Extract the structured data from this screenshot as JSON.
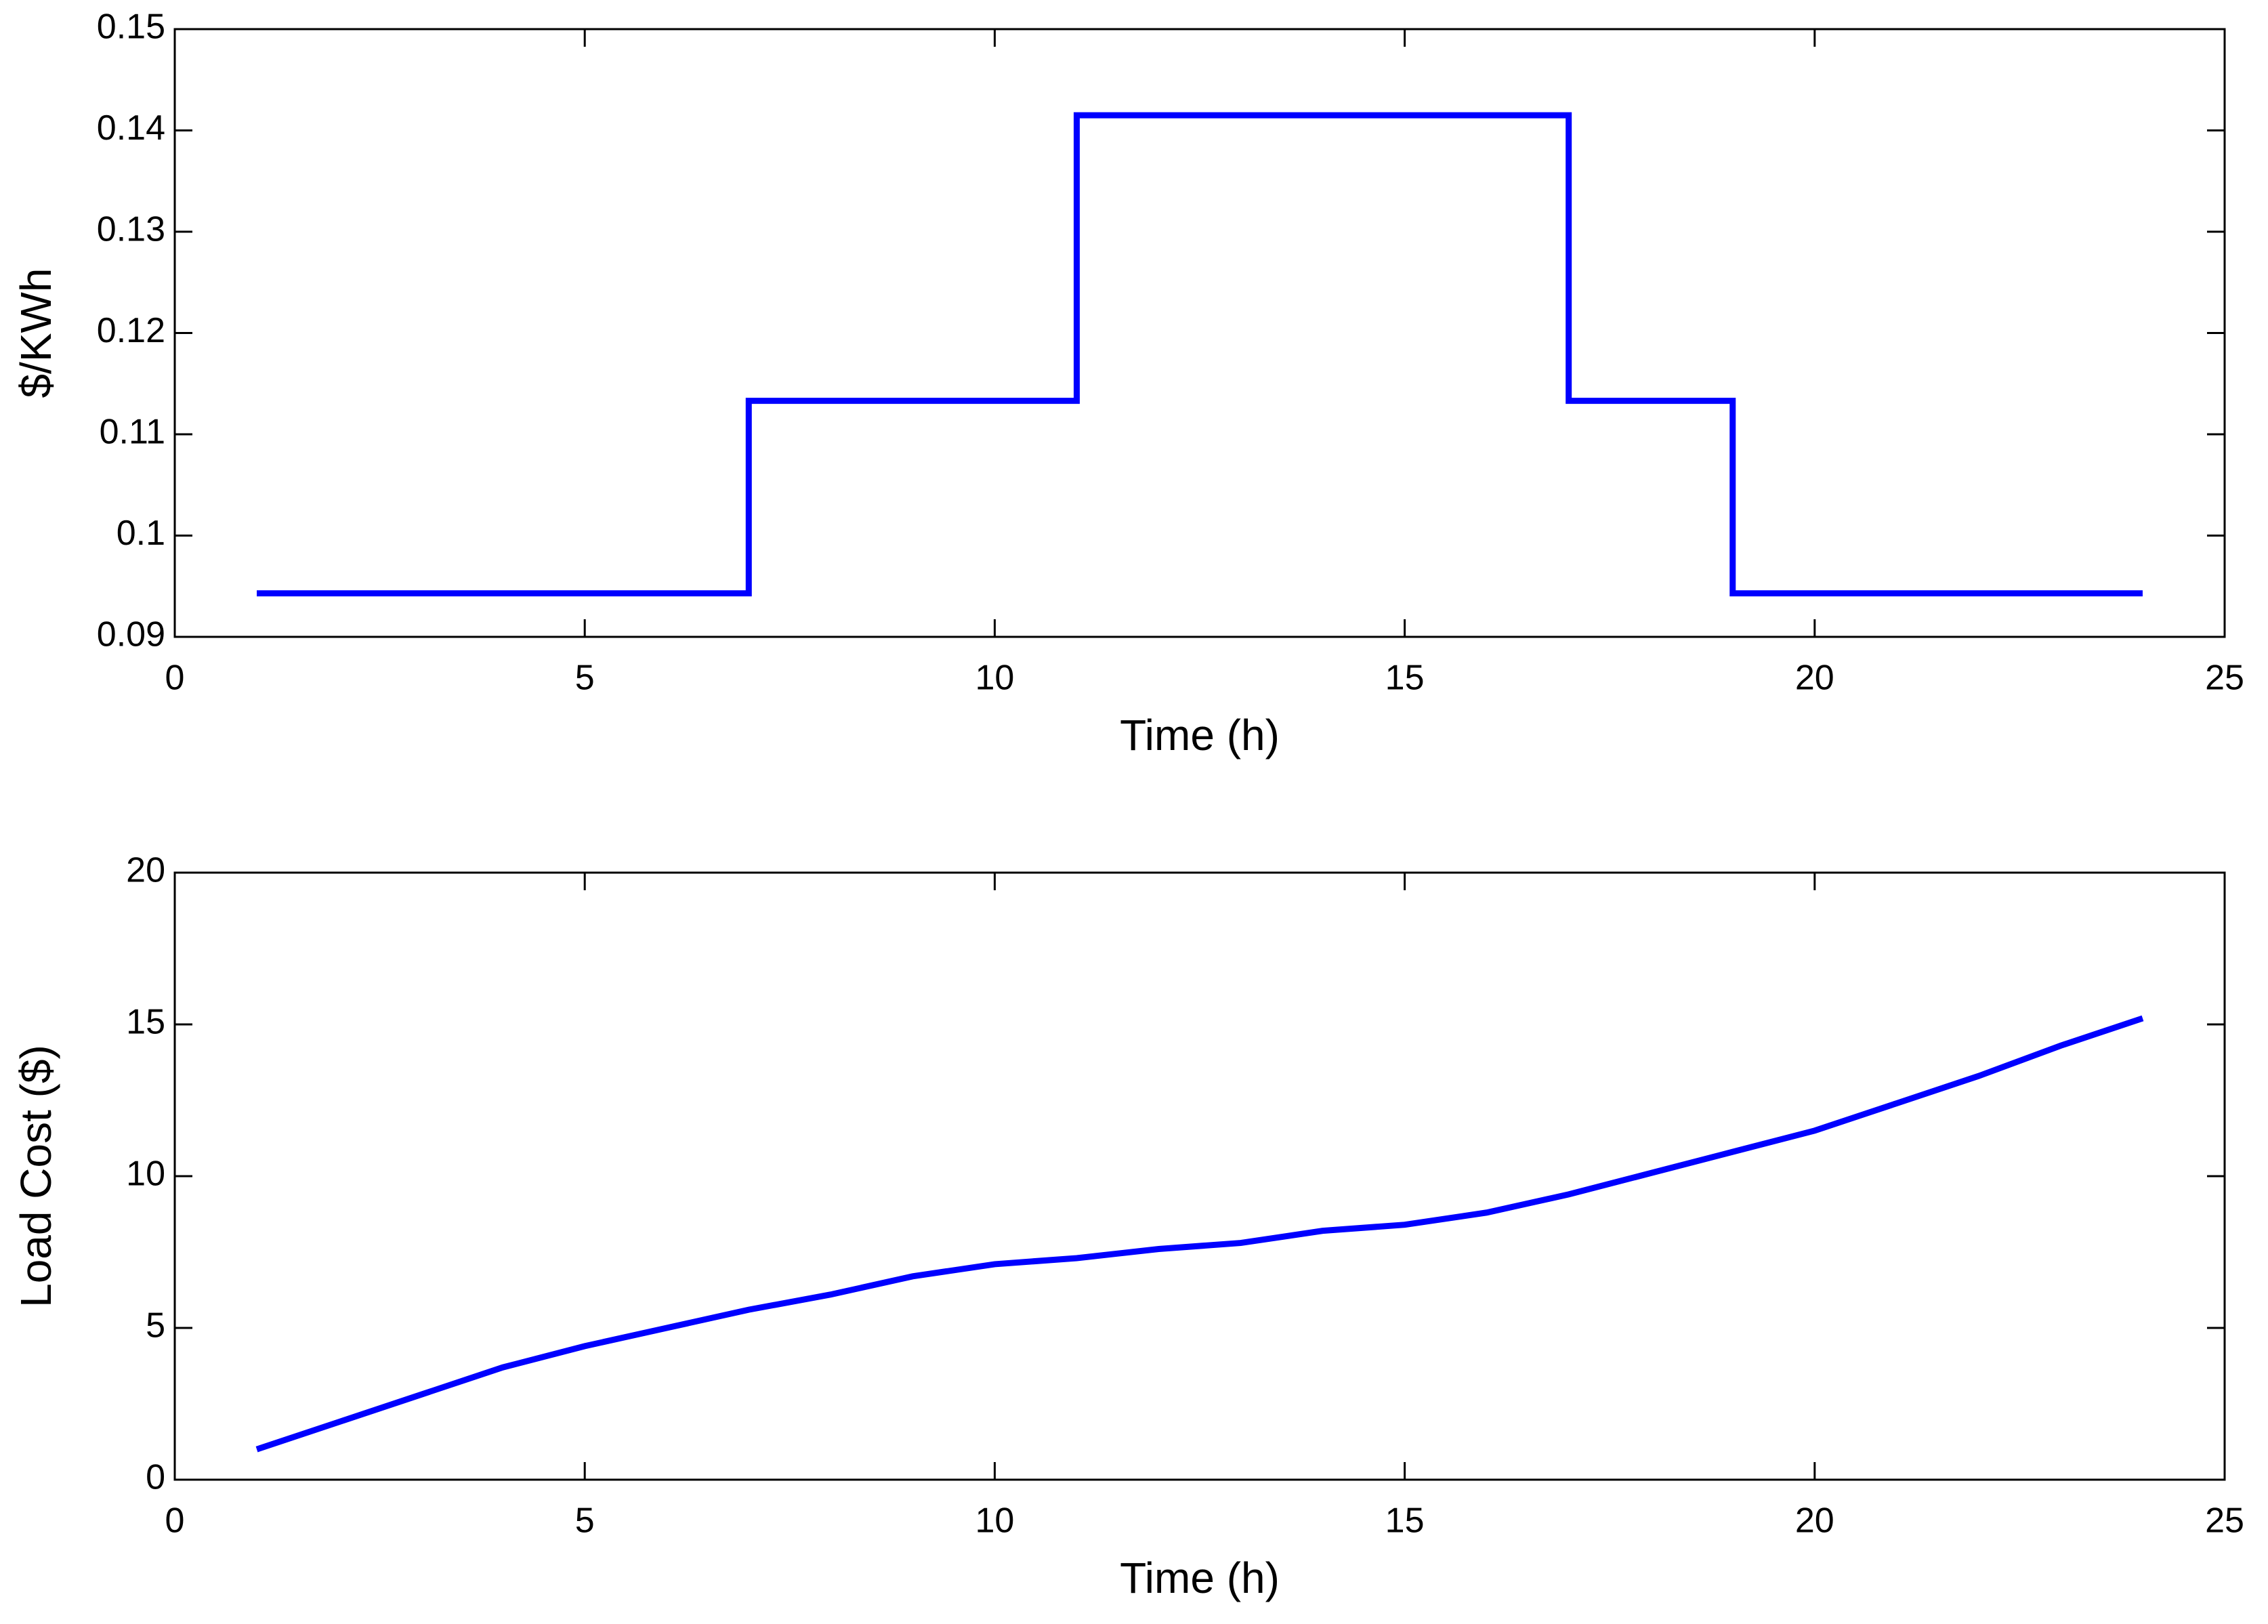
{
  "chart_data": [
    {
      "type": "line",
      "xlabel": "Time (h)",
      "ylabel": "$/KWh",
      "x": [
        1,
        7,
        7,
        11,
        11,
        17,
        17,
        19,
        19,
        24
      ],
      "series": [
        {
          "color": "#0000ff",
          "values": [
            0.0943,
            0.0943,
            0.1133,
            0.1133,
            0.1415,
            0.1415,
            0.1133,
            0.1133,
            0.0943,
            0.0943
          ]
        }
      ],
      "xlim": [
        0,
        25
      ],
      "xticks": [
        0,
        5,
        10,
        15,
        20,
        25
      ],
      "ylim": [
        0.09,
        0.15
      ],
      "yticks": [
        0.09,
        0.1,
        0.11,
        0.12,
        0.13,
        0.14,
        0.15
      ]
    },
    {
      "type": "line",
      "xlabel": "Time (h)",
      "ylabel": "Load Cost ($)",
      "x": [
        1,
        2,
        3,
        4,
        5,
        6,
        7,
        8,
        9,
        10,
        11,
        12,
        13,
        14,
        15,
        16,
        17,
        18,
        19,
        20,
        21,
        22,
        23,
        24
      ],
      "series": [
        {
          "color": "#0000ff",
          "values": [
            1.0,
            1.9,
            2.8,
            3.7,
            4.4,
            5.0,
            5.6,
            6.1,
            6.7,
            7.1,
            7.3,
            7.6,
            7.8,
            8.2,
            8.4,
            8.8,
            9.4,
            10.1,
            10.8,
            11.5,
            12.4,
            13.3,
            14.3,
            15.2
          ]
        }
      ],
      "xlim": [
        0,
        25
      ],
      "xticks": [
        0,
        5,
        10,
        15,
        20,
        25
      ],
      "ylim": [
        0,
        20
      ],
      "yticks": [
        0,
        5,
        10,
        15,
        20
      ]
    }
  ]
}
